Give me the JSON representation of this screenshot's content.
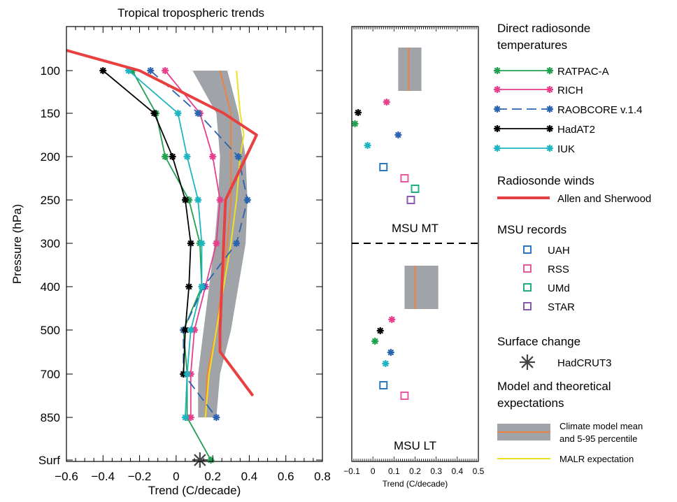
{
  "chart_data": [
    {
      "type": "line",
      "title": "Tropical tropospheric trends",
      "xlabel": "Trend (C/decade)",
      "ylabel": "Pressure (hPa)",
      "xlim": [
        -0.6,
        0.8
      ],
      "x_ticks": [
        "−0.6",
        "−0.4",
        "−0.2",
        "0",
        "0.2",
        "0.4",
        "0.6",
        "0.8"
      ],
      "y_levels": [
        "100",
        "150",
        "200",
        "250",
        "300",
        "400",
        "500",
        "700",
        "850",
        "Surf"
      ],
      "series": [
        {
          "name": "RATPAC-A",
          "color": "#22a050",
          "marker": "star",
          "points": [
            {
              "level": "100",
              "x": -0.24
            },
            {
              "level": "150",
              "x": -0.11
            },
            {
              "level": "200",
              "x": -0.06
            },
            {
              "level": "250",
              "x": 0.07
            },
            {
              "level": "300",
              "x": 0.13
            },
            {
              "level": "400",
              "x": 0.14
            },
            {
              "level": "500",
              "x": 0.04
            },
            {
              "level": "700",
              "x": 0.06
            },
            {
              "level": "850",
              "x": 0.06
            },
            {
              "level": "Surf",
              "x": 0.19
            }
          ]
        },
        {
          "name": "RICH",
          "color": "#e83e8c",
          "marker": "star",
          "points": [
            {
              "level": "100",
              "x": -0.06
            },
            {
              "level": "150",
              "x": 0.13
            },
            {
              "level": "200",
              "x": 0.2
            },
            {
              "level": "250",
              "x": 0.24
            },
            {
              "level": "300",
              "x": 0.22
            },
            {
              "level": "400",
              "x": 0.16
            },
            {
              "level": "500",
              "x": 0.1
            },
            {
              "level": "700",
              "x": 0.08
            },
            {
              "level": "850",
              "x": 0.08
            }
          ]
        },
        {
          "name": "RAOBCORE v.1.4",
          "color": "#2a64b0",
          "marker": "star",
          "dashed": true,
          "points": [
            {
              "level": "100",
              "x": -0.14
            },
            {
              "level": "150",
              "x": 0.12
            },
            {
              "level": "200",
              "x": 0.34
            },
            {
              "level": "250",
              "x": 0.39
            },
            {
              "level": "300",
              "x": 0.33
            },
            {
              "level": "400",
              "x": 0.15
            },
            {
              "level": "500",
              "x": 0.04
            },
            {
              "level": "700",
              "x": 0.04
            },
            {
              "level": "850",
              "x": 0.22
            }
          ]
        },
        {
          "name": "HadAT2",
          "color": "#000000",
          "marker": "star",
          "points": [
            {
              "level": "100",
              "x": -0.4
            },
            {
              "level": "150",
              "x": -0.12
            },
            {
              "level": "200",
              "x": -0.02
            },
            {
              "level": "250",
              "x": 0.05
            },
            {
              "level": "300",
              "x": 0.08
            },
            {
              "level": "400",
              "x": 0.07
            },
            {
              "level": "500",
              "x": 0.05
            },
            {
              "level": "700",
              "x": 0.04
            }
          ]
        },
        {
          "name": "IUK",
          "color": "#1fb5c0",
          "marker": "star",
          "points": [
            {
              "level": "100",
              "x": -0.26
            },
            {
              "level": "150",
              "x": 0.01
            },
            {
              "level": "200",
              "x": 0.06
            },
            {
              "level": "250",
              "x": 0.12
            },
            {
              "level": "300",
              "x": 0.14
            },
            {
              "level": "400",
              "x": 0.14
            },
            {
              "level": "500",
              "x": 0.08
            },
            {
              "level": "700",
              "x": 0.06
            },
            {
              "level": "850",
              "x": 0.05
            }
          ]
        },
        {
          "name": "Allen and Sherwood",
          "color": "#e84040",
          "marker": "none",
          "points": [
            {
              "level": "above",
              "x": -0.6
            },
            {
              "level": "100",
              "x": -0.2
            },
            {
              "level": "150",
              "x": 0.26
            },
            {
              "level": "175",
              "x": 0.44
            },
            {
              "level": "250",
              "x": 0.27
            },
            {
              "level": "300",
              "x": 0.26
            },
            {
              "level": "400",
              "x": 0.25
            },
            {
              "level": "500",
              "x": 0.24
            },
            {
              "level": "600",
              "x": 0.24
            },
            {
              "level": "750",
              "x": 0.42
            }
          ]
        },
        {
          "name": "MALR expectation",
          "color": "#f0e020",
          "marker": "none",
          "points": [
            {
              "level": "100",
              "x": 0.33
            },
            {
              "level": "150",
              "x": 0.35
            },
            {
              "level": "175",
              "x": 0.37
            },
            {
              "level": "200",
              "x": 0.35
            },
            {
              "level": "250",
              "x": 0.33
            },
            {
              "level": "300",
              "x": 0.3
            },
            {
              "level": "400",
              "x": 0.26
            },
            {
              "level": "500",
              "x": 0.22
            },
            {
              "level": "700",
              "x": 0.18
            },
            {
              "level": "850",
              "x": 0.16
            }
          ]
        },
        {
          "name": "Climate model mean and 5-95 percentile",
          "type": "area",
          "color": "#a0a4a8",
          "mean_color": "#f08040",
          "points": [
            {
              "level": "100",
              "lo": 0.09,
              "hi": 0.28,
              "mean": 0.24
            },
            {
              "level": "150",
              "lo": 0.22,
              "hi": 0.34,
              "mean": 0.3
            },
            {
              "level": "200",
              "lo": 0.24,
              "hi": 0.38,
              "mean": 0.3
            },
            {
              "level": "250",
              "lo": 0.23,
              "hi": 0.39,
              "mean": 0.3
            },
            {
              "level": "300",
              "lo": 0.21,
              "hi": 0.38,
              "mean": 0.28
            },
            {
              "level": "400",
              "lo": 0.18,
              "hi": 0.34,
              "mean": 0.25
            },
            {
              "level": "500",
              "lo": 0.15,
              "hi": 0.3,
              "mean": 0.22
            },
            {
              "level": "700",
              "lo": 0.12,
              "hi": 0.24,
              "mean": 0.17
            },
            {
              "level": "850",
              "lo": 0.12,
              "hi": 0.22,
              "mean": 0.16
            }
          ]
        },
        {
          "name": "HadCRUT3",
          "color": "#444444",
          "marker": "big-star",
          "points": [
            {
              "level": "Surf",
              "x": 0.13
            }
          ]
        }
      ]
    },
    {
      "type": "scatter",
      "xlabel": "Trend (C/decade)",
      "xlim": [
        -0.1,
        0.5
      ],
      "x_ticks": [
        "−0.1",
        "0",
        "0.1",
        "0.2",
        "0.3",
        "0.4",
        "0.5"
      ],
      "panels": [
        {
          "label": "MSU MT",
          "model_band": {
            "lo": 0.12,
            "hi": 0.23,
            "mean": 0.17
          },
          "points": [
            {
              "series": "RICH",
              "x": 0.065,
              "row": 1
            },
            {
              "series": "HadAT2",
              "x": -0.07,
              "row": 2
            },
            {
              "series": "RATPAC-A",
              "x": -0.085,
              "row": 3
            },
            {
              "series": "RAOBCORE v.1.4",
              "x": 0.12,
              "row": 3.5
            },
            {
              "series": "IUK",
              "x": -0.025,
              "row": 4
            },
            {
              "series": "UAH",
              "x": 0.05,
              "row": 5
            },
            {
              "series": "RSS",
              "x": 0.15,
              "row": 6
            },
            {
              "series": "UMd",
              "x": 0.2,
              "row": 7
            },
            {
              "series": "STAR",
              "x": 0.18,
              "row": 8
            }
          ]
        },
        {
          "label": "MSU LT",
          "model_band": {
            "lo": 0.15,
            "hi": 0.31,
            "mean": 0.2
          },
          "points": [
            {
              "series": "RICH",
              "x": 0.09,
              "row": 1
            },
            {
              "series": "HadAT2",
              "x": 0.035,
              "row": 2
            },
            {
              "series": "RATPAC-A",
              "x": 0.01,
              "row": 3
            },
            {
              "series": "RAOBCORE v.1.4",
              "x": 0.085,
              "row": 4
            },
            {
              "series": "IUK",
              "x": 0.06,
              "row": 5
            },
            {
              "series": "UAH",
              "x": 0.05,
              "row": 6
            },
            {
              "series": "RSS",
              "x": 0.15,
              "row": 7
            }
          ]
        }
      ]
    }
  ],
  "legend": {
    "sections": [
      {
        "title": "Direct radiosonde temperatures",
        "items": [
          "RATPAC-A",
          "RICH",
          "RAOBCORE v.1.4",
          "HadAT2",
          "IUK"
        ]
      },
      {
        "title": "Radiosonde winds",
        "items": [
          "Allen and Sherwood"
        ]
      },
      {
        "title": "MSU records",
        "items": [
          "UAH",
          "RSS",
          "UMd",
          "STAR"
        ]
      },
      {
        "title": "Surface change",
        "items": [
          "HadCRUT3"
        ]
      },
      {
        "title": "Model and theoretical expectations",
        "items": [
          "Climate model mean and 5-95 percentile",
          "MALR expectation"
        ]
      }
    ],
    "msu_colors": {
      "UAH": "#2a78c0",
      "RSS": "#e85aa0",
      "UMd": "#20b080",
      "STAR": "#8a5ab0"
    }
  }
}
